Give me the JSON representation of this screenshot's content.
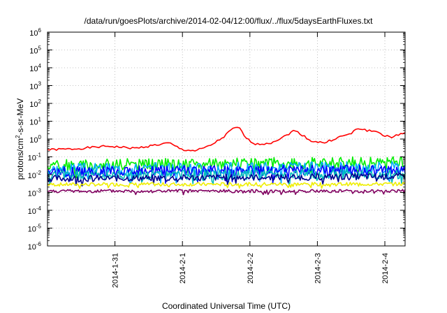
{
  "chart_data": {
    "type": "line",
    "title": "/data/run/goesPlots/archive/2014-02-04/12:00/flux/../flux/5daysEarthFluxes.txt",
    "xlabel": "Coordinated Universal Time (UTC)",
    "ylabel": {
      "prefix": "protons/cm",
      "sup": "2",
      "suffix": "-s-sr-MeV"
    },
    "yscale": "log",
    "ylim": [
      1e-06,
      1000000
    ],
    "xlim": [
      0,
      5.3
    ],
    "grid": true,
    "y_tick_exponents": [
      -6,
      -5,
      -4,
      -3,
      -2,
      -1,
      0,
      1,
      2,
      3,
      4,
      5,
      6
    ],
    "y_tick_base": "10",
    "x_ticks": [
      {
        "x": 1,
        "label": "2014-1-31"
      },
      {
        "x": 2,
        "label": "2014-2-1"
      },
      {
        "x": 3,
        "label": "2014-2-2"
      },
      {
        "x": 4,
        "label": "2014-2-3"
      },
      {
        "x": 5,
        "label": "2014-2-4"
      }
    ],
    "series": [
      {
        "color": "#ff0000",
        "mode": "smooth",
        "amp": 0.06,
        "seed": 1,
        "points": [
          [
            0,
            0.25
          ],
          [
            0.4,
            0.28
          ],
          [
            0.9,
            0.4
          ],
          [
            1.3,
            0.3
          ],
          [
            1.5,
            0.4
          ],
          [
            1.8,
            0.6
          ],
          [
            2.0,
            0.25
          ],
          [
            2.2,
            0.22
          ],
          [
            2.4,
            0.4
          ],
          [
            2.6,
            1.2
          ],
          [
            2.75,
            4
          ],
          [
            2.85,
            4
          ],
          [
            2.95,
            1
          ],
          [
            3.1,
            0.5
          ],
          [
            3.3,
            0.6
          ],
          [
            3.5,
            1.3
          ],
          [
            3.65,
            3
          ],
          [
            3.75,
            2
          ],
          [
            3.9,
            0.8
          ],
          [
            4.1,
            0.6
          ],
          [
            4.3,
            1.2
          ],
          [
            4.5,
            2
          ],
          [
            4.6,
            4
          ],
          [
            4.75,
            3
          ],
          [
            4.9,
            2.5
          ],
          [
            5.0,
            1.5
          ],
          [
            5.1,
            1.2
          ],
          [
            5.3,
            2.5
          ]
        ]
      },
      {
        "color": "#00ee00",
        "mode": "noisy",
        "amp": 0.32,
        "seed": 2,
        "points": [
          [
            0,
            0.035
          ],
          [
            5.3,
            0.05
          ]
        ]
      },
      {
        "color": "#00aaff",
        "mode": "noisy",
        "amp": 0.35,
        "seed": 3,
        "points": [
          [
            0,
            0.02
          ],
          [
            5.3,
            0.025
          ]
        ]
      },
      {
        "color": "#0000ff",
        "mode": "noisy",
        "amp": 0.3,
        "seed": 4,
        "points": [
          [
            0,
            0.015
          ],
          [
            5.3,
            0.018
          ]
        ]
      },
      {
        "color": "#00bbbb",
        "mode": "noisy",
        "amp": 0.28,
        "seed": 5,
        "points": [
          [
            0,
            0.009
          ],
          [
            5.3,
            0.011
          ]
        ]
      },
      {
        "color": "#000090",
        "mode": "noisy",
        "amp": 0.18,
        "seed": 6,
        "points": [
          [
            0,
            0.006
          ],
          [
            5.3,
            0.008
          ]
        ]
      },
      {
        "color": "#eeee00",
        "mode": "noisy",
        "amp": 0.1,
        "seed": 7,
        "points": [
          [
            0,
            0.0028
          ],
          [
            5.3,
            0.003
          ]
        ]
      },
      {
        "color": "#800060",
        "mode": "noisy",
        "amp": 0.09,
        "seed": 8,
        "points": [
          [
            0,
            0.0012
          ],
          [
            5.3,
            0.0012
          ]
        ]
      }
    ]
  }
}
